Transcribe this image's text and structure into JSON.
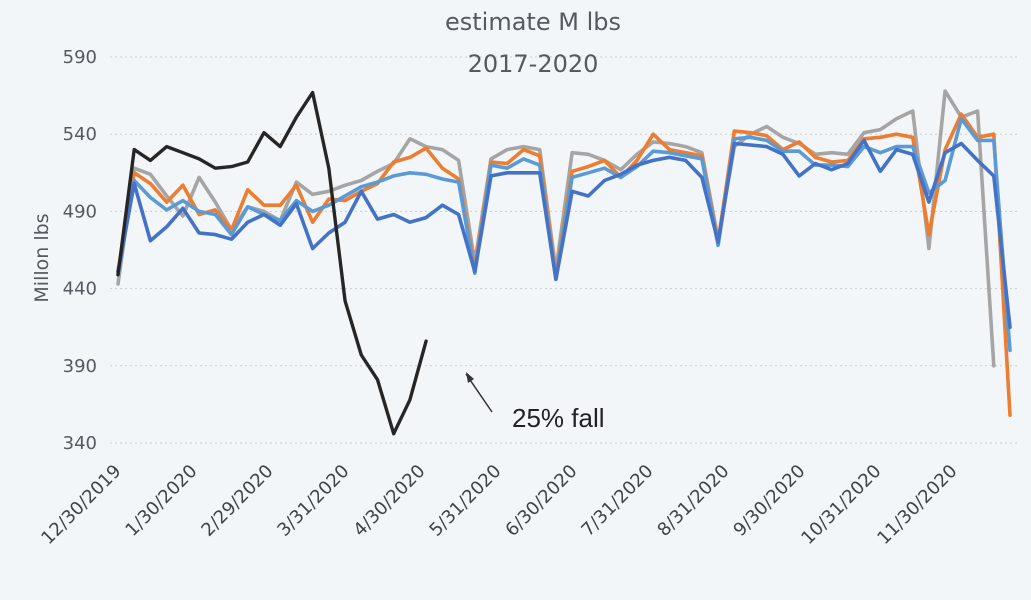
{
  "chart_data": {
    "type": "line",
    "title": [
      "estimate M lbs",
      "2017-2020"
    ],
    "ylabel": "Millon lbs",
    "xlabel": "",
    "ylim": [
      340,
      600
    ],
    "yticks": [
      340,
      390,
      440,
      490,
      540,
      590
    ],
    "x_tick_labels": [
      "12/30/2019",
      "1/30/2020",
      "2/29/2020",
      "3/31/2020",
      "4/30/2020",
      "5/31/2020",
      "6/30/2020",
      "7/31/2020",
      "8/31/2020",
      "9/30/2020",
      "10/31/2020",
      "11/30/2020"
    ],
    "grid": "dotted-horizontal",
    "annotation": {
      "text": "25% fall",
      "arrow": true
    },
    "series": [
      {
        "color": "#a5a5a5",
        "values": [
          443,
          518,
          514,
          500,
          487,
          512,
          496,
          478,
          493,
          490,
          484,
          509,
          501,
          503,
          507,
          510,
          516,
          521,
          537,
          532,
          530,
          523,
          457,
          524,
          530,
          532,
          530,
          452,
          528,
          527,
          523,
          517,
          527,
          535,
          534,
          532,
          528,
          472,
          532,
          540,
          545,
          538,
          534,
          527,
          528,
          527,
          541,
          543,
          550,
          555,
          466,
          568,
          551,
          555,
          390
        ]
      },
      {
        "color": "#ed7d31",
        "values": [
          451,
          515,
          508,
          496,
          507,
          488,
          491,
          478,
          504,
          494,
          494,
          507,
          483,
          498,
          497,
          503,
          508,
          522,
          525,
          531,
          518,
          511,
          453,
          522,
          521,
          530,
          526,
          448,
          516,
          519,
          523,
          512,
          523,
          540,
          530,
          528,
          526,
          470,
          542,
          541,
          539,
          530,
          535,
          525,
          522,
          523,
          537,
          538,
          540,
          538,
          475,
          530,
          553,
          538,
          540,
          358
        ]
      },
      {
        "color": "#5b9bd5",
        "values": [
          449,
          510,
          499,
          491,
          497,
          490,
          488,
          475,
          493,
          488,
          484,
          497,
          490,
          494,
          500,
          506,
          509,
          513,
          515,
          514,
          511,
          509,
          450,
          520,
          518,
          524,
          520,
          446,
          512,
          515,
          518,
          512,
          519,
          529,
          528,
          526,
          524,
          468,
          537,
          538,
          536,
          529,
          529,
          520,
          520,
          519,
          532,
          528,
          532,
          532,
          502,
          510,
          550,
          536,
          536,
          400
        ]
      },
      {
        "color": "#4472c4",
        "values": [
          451,
          508,
          471,
          480,
          492,
          476,
          475,
          472,
          483,
          488,
          481,
          495,
          466,
          476,
          483,
          503,
          485,
          488,
          483,
          486,
          494,
          488,
          451,
          513,
          515,
          515,
          515,
          446,
          503,
          500,
          510,
          514,
          520,
          523,
          525,
          523,
          512,
          470,
          534,
          533,
          532,
          527,
          513,
          521,
          517,
          521,
          536,
          516,
          530,
          527,
          496,
          528,
          534,
          523,
          513,
          415
        ]
      },
      {
        "color": "#262626",
        "values": [
          449,
          530,
          523,
          532,
          528,
          524,
          518,
          519,
          522,
          541,
          532,
          551,
          567,
          518,
          432,
          397,
          381,
          346,
          368,
          406
        ]
      }
    ]
  }
}
